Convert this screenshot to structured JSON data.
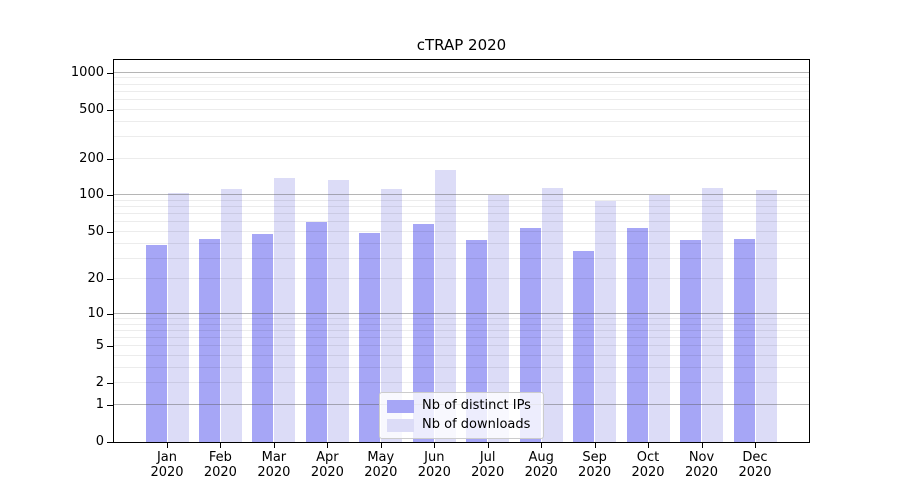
{
  "figure": {
    "title": "cTRAP 2020"
  },
  "colors": {
    "bar_distinct_ips": "#a6a6f6",
    "bar_downloads": "#dcdcf7",
    "grid_major": "#b5b5b5",
    "grid_minor": "#ececec",
    "axis": "#000000",
    "background": "#ffffff",
    "legend_border": "#cccccc"
  },
  "chart_data": {
    "type": "bar",
    "title": "cTRAP 2020",
    "categories": [
      "Jan 2020",
      "Feb 2020",
      "Mar 2020",
      "Apr 2020",
      "May 2020",
      "Jun 2020",
      "Jul 2020",
      "Aug 2020",
      "Sep 2020",
      "Oct 2020",
      "Nov 2020",
      "Dec 2020"
    ],
    "series": [
      {
        "name": "Nb of distinct IPs",
        "color": "#a6a6f6",
        "values": [
          39,
          44,
          48,
          60,
          49,
          58,
          43,
          54,
          35,
          54,
          43,
          44
        ]
      },
      {
        "name": "Nb of downloads",
        "color": "#dcdcf7",
        "values": [
          105,
          113,
          140,
          133,
          113,
          160,
          101,
          115,
          90,
          101,
          114,
          111
        ]
      }
    ],
    "xlabel": "",
    "ylabel": "",
    "yscale": "log1p",
    "ylim": [
      0,
      1270
    ],
    "y_ticks": [
      0,
      1,
      2,
      5,
      10,
      20,
      50,
      100,
      200,
      500,
      1000
    ],
    "grid": true,
    "grid_minor": true,
    "legend_position": "lower center"
  }
}
